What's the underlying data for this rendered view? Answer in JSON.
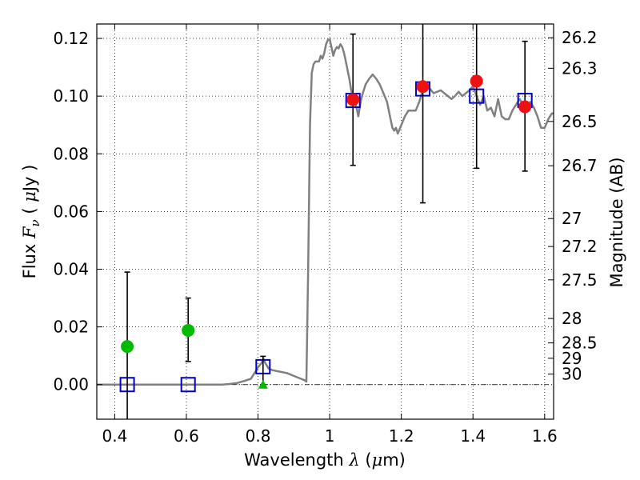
{
  "chart_data": {
    "type": "scatter",
    "title": "",
    "xlabel": {
      "prefix": "Wavelength ",
      "sym": "λ",
      "unit_open": " (",
      "unit_mu": "μ",
      "unit_rest": "m)"
    },
    "ylabel": {
      "prefix": "Flux ",
      "sym": "F",
      "sub": "ν",
      "unit_open": " ( ",
      "unit_mu": "μ",
      "unit_rest": "Jy )"
    },
    "y2label": "Magnitude (AB)",
    "xlim": [
      0.35,
      1.625
    ],
    "ylim": [
      -0.012,
      0.125
    ],
    "grid": true,
    "x_ticks": [
      {
        "v": 0.4,
        "label": "0.4"
      },
      {
        "v": 0.6,
        "label": "0.6"
      },
      {
        "v": 0.8,
        "label": "0.8"
      },
      {
        "v": 1.0,
        "label": "1"
      },
      {
        "v": 1.2,
        "label": "1.2"
      },
      {
        "v": 1.4,
        "label": "1.4"
      },
      {
        "v": 1.6,
        "label": "1.6"
      }
    ],
    "y_ticks": [
      {
        "v": 0.0,
        "label": "0.00"
      },
      {
        "v": 0.02,
        "label": "0.02"
      },
      {
        "v": 0.04,
        "label": "0.04"
      },
      {
        "v": 0.06,
        "label": "0.06"
      },
      {
        "v": 0.08,
        "label": "0.08"
      },
      {
        "v": 0.1,
        "label": "0.10"
      },
      {
        "v": 0.12,
        "label": "0.12"
      }
    ],
    "mag_ticks": [
      {
        "v": 26.2,
        "label": "26.2"
      },
      {
        "v": 26.3,
        "label": "26.3"
      },
      {
        "v": 26.5,
        "label": "26.5"
      },
      {
        "v": 26.7,
        "label": "26.7"
      },
      {
        "v": 27,
        "label": "27"
      },
      {
        "v": 27.2,
        "label": "27.2"
      },
      {
        "v": 27.5,
        "label": "27.5"
      },
      {
        "v": 28,
        "label": "28"
      },
      {
        "v": 28.5,
        "label": "28.5"
      },
      {
        "v": 29,
        "label": "29"
      },
      {
        "v": 30,
        "label": "30"
      }
    ],
    "series": [
      {
        "kind": "line",
        "color": "#808080",
        "points": [
          [
            0.35,
            0.0
          ],
          [
            0.7,
            0.0
          ],
          [
            0.72,
            0.0002
          ],
          [
            0.74,
            0.0005
          ],
          [
            0.76,
            0.0012
          ],
          [
            0.78,
            0.002
          ],
          [
            0.79,
            0.004
          ],
          [
            0.8,
            0.006
          ],
          [
            0.81,
            0.0075
          ],
          [
            0.815,
            0.009
          ],
          [
            0.82,
            0.0075
          ],
          [
            0.83,
            0.0055
          ],
          [
            0.84,
            0.005
          ],
          [
            0.86,
            0.0045
          ],
          [
            0.88,
            0.004
          ],
          [
            0.9,
            0.003
          ],
          [
            0.92,
            0.002
          ],
          [
            0.93,
            0.0015
          ],
          [
            0.935,
            0.001
          ],
          [
            0.94,
            0.04
          ],
          [
            0.945,
            0.09
          ],
          [
            0.95,
            0.108
          ],
          [
            0.955,
            0.111
          ],
          [
            0.96,
            0.112
          ],
          [
            0.97,
            0.112
          ],
          [
            0.975,
            0.114
          ],
          [
            0.98,
            0.113
          ],
          [
            0.985,
            0.115
          ],
          [
            0.99,
            0.118
          ],
          [
            0.995,
            0.1195
          ],
          [
            1.0,
            0.1197
          ],
          [
            1.005,
            0.117
          ],
          [
            1.01,
            0.114
          ],
          [
            1.015,
            0.116
          ],
          [
            1.02,
            0.117
          ],
          [
            1.025,
            0.1165
          ],
          [
            1.03,
            0.118
          ],
          [
            1.035,
            0.117
          ],
          [
            1.04,
            0.115
          ],
          [
            1.045,
            0.112
          ],
          [
            1.05,
            0.109
          ],
          [
            1.055,
            0.106
          ],
          [
            1.06,
            0.102
          ],
          [
            1.065,
            0.1
          ],
          [
            1.07,
            0.098
          ],
          [
            1.075,
            0.096
          ],
          [
            1.08,
            0.093
          ],
          [
            1.085,
            0.097
          ],
          [
            1.09,
            0.1
          ],
          [
            1.1,
            0.104
          ],
          [
            1.11,
            0.106
          ],
          [
            1.12,
            0.1075
          ],
          [
            1.13,
            0.106
          ],
          [
            1.14,
            0.104
          ],
          [
            1.15,
            0.101
          ],
          [
            1.16,
            0.098
          ],
          [
            1.17,
            0.092
          ],
          [
            1.175,
            0.089
          ],
          [
            1.18,
            0.088
          ],
          [
            1.185,
            0.089
          ],
          [
            1.19,
            0.087
          ],
          [
            1.2,
            0.09
          ],
          [
            1.21,
            0.093
          ],
          [
            1.22,
            0.095
          ],
          [
            1.24,
            0.095
          ],
          [
            1.25,
            0.098
          ],
          [
            1.26,
            0.102
          ],
          [
            1.27,
            0.103
          ],
          [
            1.28,
            0.1025
          ],
          [
            1.29,
            0.101
          ],
          [
            1.3,
            0.1015
          ],
          [
            1.31,
            0.102
          ],
          [
            1.32,
            0.101
          ],
          [
            1.33,
            0.1
          ],
          [
            1.34,
            0.099
          ],
          [
            1.35,
            0.1
          ],
          [
            1.36,
            0.1015
          ],
          [
            1.37,
            0.1
          ],
          [
            1.38,
            0.101
          ],
          [
            1.39,
            0.102
          ],
          [
            1.4,
            0.1035
          ],
          [
            1.41,
            0.1
          ],
          [
            1.42,
            0.097
          ],
          [
            1.43,
            0.1
          ],
          [
            1.44,
            0.095
          ],
          [
            1.45,
            0.096
          ],
          [
            1.46,
            0.093
          ],
          [
            1.47,
            0.099
          ],
          [
            1.48,
            0.093
          ],
          [
            1.49,
            0.092
          ],
          [
            1.5,
            0.092
          ],
          [
            1.51,
            0.095
          ],
          [
            1.52,
            0.097
          ],
          [
            1.53,
            0.099
          ],
          [
            1.54,
            0.097
          ],
          [
            1.55,
            0.096
          ],
          [
            1.56,
            0.098
          ],
          [
            1.57,
            0.096
          ],
          [
            1.58,
            0.093
          ],
          [
            1.59,
            0.089
          ],
          [
            1.6,
            0.089
          ],
          [
            1.61,
            0.092
          ],
          [
            1.62,
            0.094
          ],
          [
            1.625,
            0.094
          ]
        ]
      },
      {
        "kind": "squares",
        "color": "#0000cc",
        "points": [
          [
            0.435,
            0.0
          ],
          [
            0.605,
            0.0
          ],
          [
            0.814,
            0.0062
          ],
          [
            1.065,
            0.0985
          ],
          [
            1.26,
            0.1025
          ],
          [
            1.41,
            0.1
          ],
          [
            1.545,
            0.0985
          ]
        ]
      },
      {
        "kind": "errorbars",
        "color": "#000000",
        "points": [
          {
            "x": 0.435,
            "lo": -0.013,
            "hi": 0.039
          },
          {
            "x": 0.605,
            "lo": 0.008,
            "hi": 0.03
          },
          {
            "x": 0.814,
            "lo": 0.0,
            "hi": 0.0098
          },
          {
            "x": 1.065,
            "lo": 0.076,
            "hi": 0.1215
          },
          {
            "x": 1.26,
            "lo": 0.063,
            "hi": 0.14
          },
          {
            "x": 1.41,
            "lo": 0.075,
            "hi": 0.14
          },
          {
            "x": 1.545,
            "lo": 0.074,
            "hi": 0.119
          }
        ]
      },
      {
        "kind": "circles",
        "color": "#00bb00",
        "points": [
          [
            0.435,
            0.0132
          ],
          [
            0.605,
            0.0188
          ]
        ]
      },
      {
        "kind": "triangles",
        "color": "#00bb00",
        "points": [
          [
            0.814,
            0.0
          ]
        ]
      },
      {
        "kind": "circles",
        "color": "#ee1111",
        "points": [
          [
            1.065,
            0.0988
          ],
          [
            1.26,
            0.1033
          ],
          [
            1.41,
            0.1052
          ],
          [
            1.545,
            0.0963
          ]
        ]
      }
    ]
  }
}
